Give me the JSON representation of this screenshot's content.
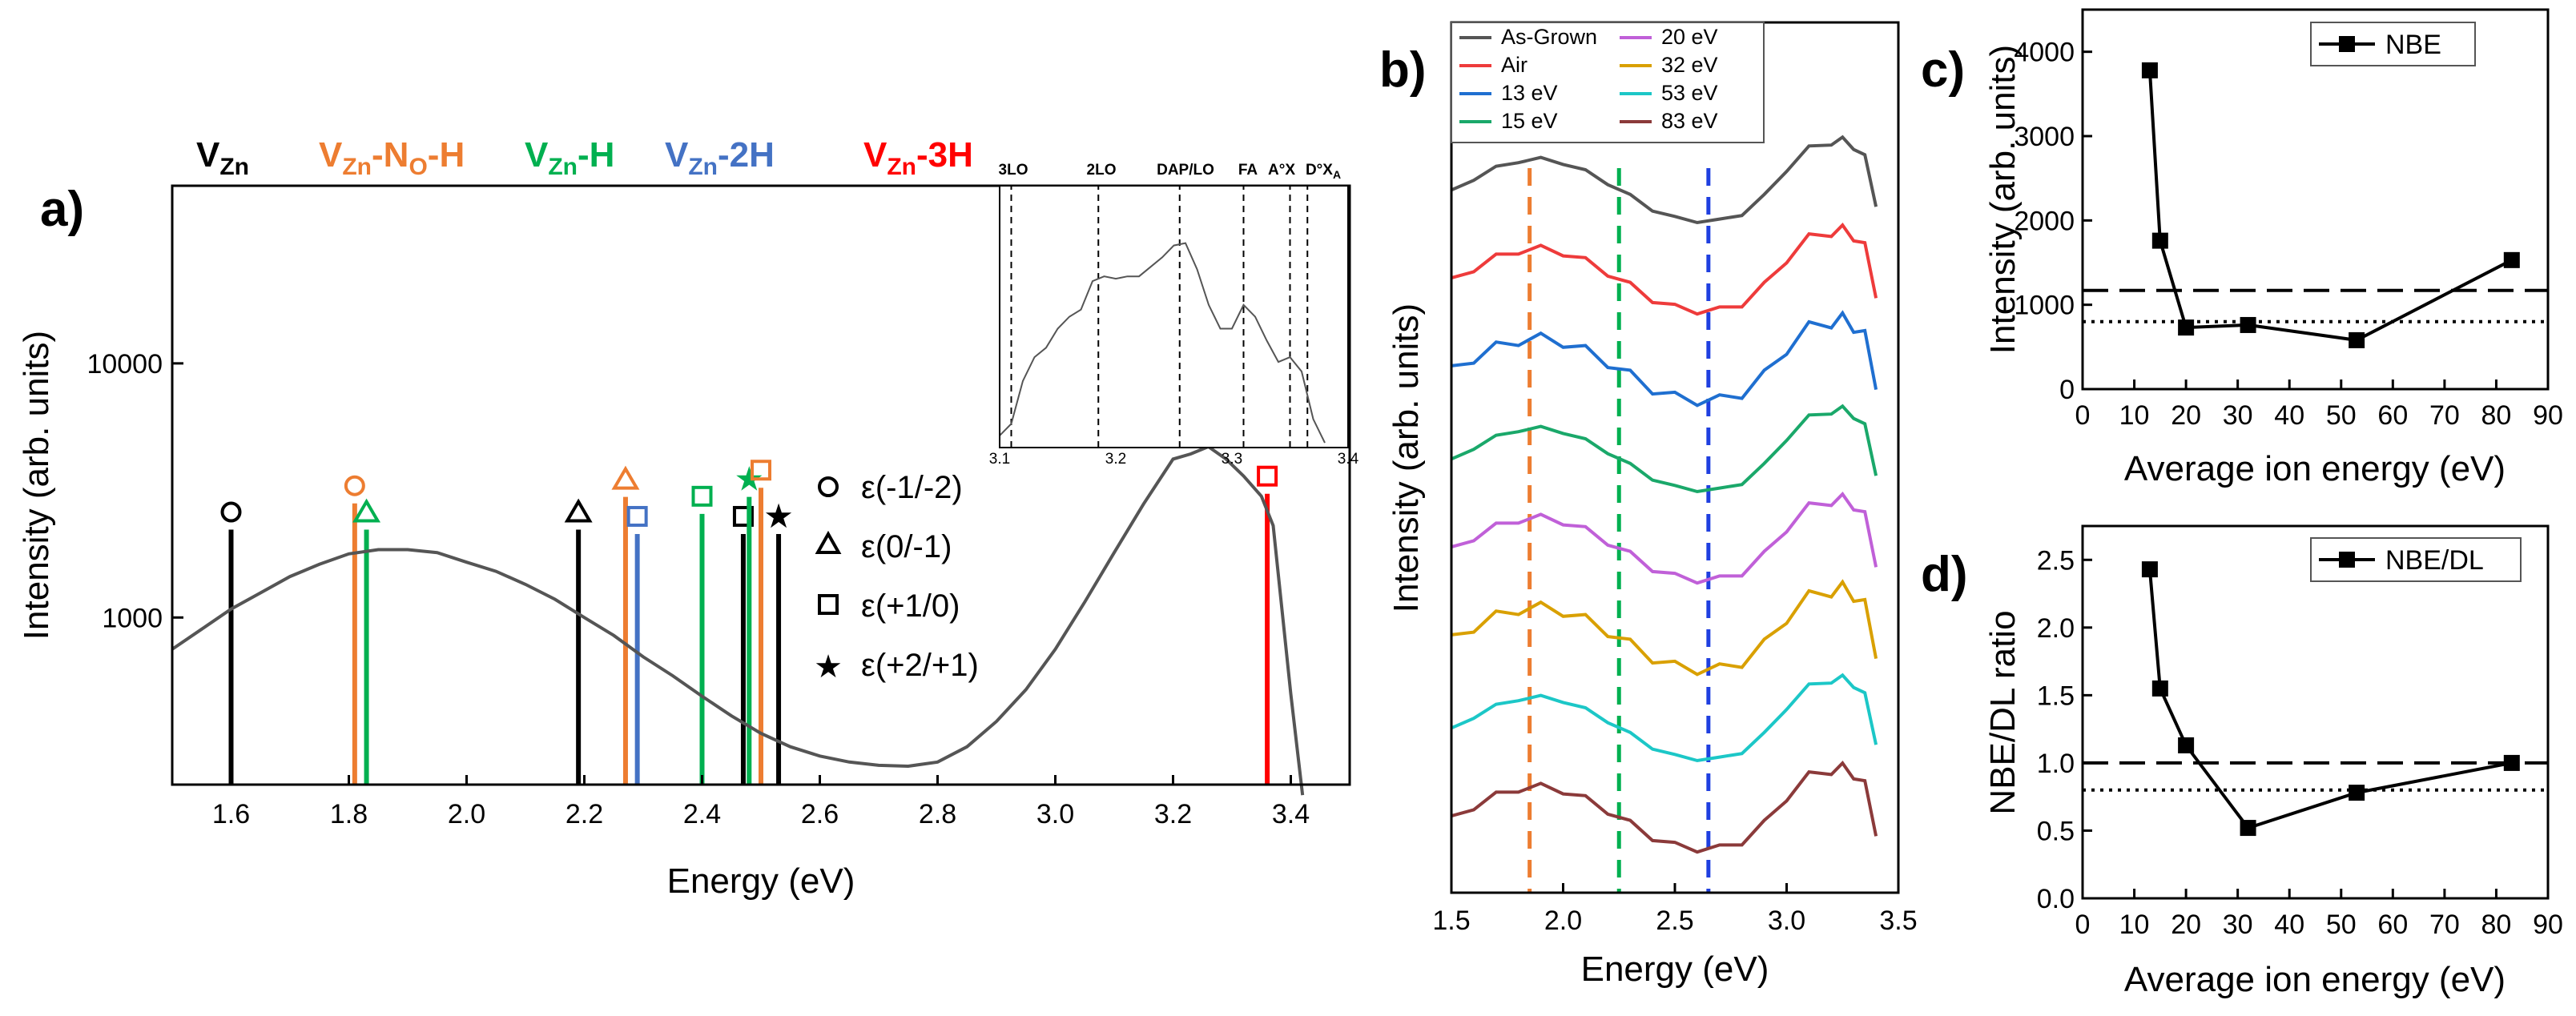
{
  "chart_data": [
    {
      "id": "a",
      "panel_label": "a)",
      "type": "line",
      "xlabel": "Energy (eV)",
      "ylabel": "Intensity (arb. units)",
      "xlim": [
        1.5,
        3.5
      ],
      "ylim": [
        220,
        50000
      ],
      "yscale": "log",
      "x_ticks": [
        "1.6",
        "1.8",
        "2.0",
        "2.2",
        "2.4",
        "2.6",
        "2.8",
        "3.0",
        "3.2",
        "3.4"
      ],
      "y_ticks": [
        "1000",
        "10000"
      ],
      "y_tick_values": [
        1000,
        10000
      ],
      "spectrum": {
        "color": "#555555",
        "x": [
          1.5,
          1.55,
          1.6,
          1.65,
          1.7,
          1.75,
          1.8,
          1.85,
          1.9,
          1.95,
          2.0,
          2.05,
          2.1,
          2.15,
          2.2,
          2.25,
          2.3,
          2.35,
          2.4,
          2.45,
          2.5,
          2.55,
          2.6,
          2.65,
          2.7,
          2.75,
          2.8,
          2.85,
          2.9,
          2.95,
          3.0,
          3.05,
          3.1,
          3.15,
          3.2,
          3.23,
          3.26,
          3.29,
          3.32,
          3.35,
          3.37,
          3.4,
          3.42
        ],
        "y": [
          750,
          900,
          1080,
          1250,
          1450,
          1620,
          1780,
          1850,
          1850,
          1800,
          1650,
          1520,
          1350,
          1180,
          1000,
          850,
          700,
          590,
          490,
          410,
          350,
          310,
          285,
          270,
          262,
          260,
          270,
          310,
          390,
          520,
          750,
          1150,
          1800,
          2800,
          4200,
          4400,
          4700,
          4200,
          3600,
          3000,
          2300,
          500,
          200
        ]
      },
      "energy_lines": [
        {
          "x": 1.6,
          "ymax": 2600,
          "color": "#000000",
          "marker": "circle"
        },
        {
          "x": 1.81,
          "ymax": 3300,
          "color": "#ED7D31",
          "marker": "circle"
        },
        {
          "x": 1.83,
          "ymax": 2600,
          "color": "#00B050",
          "marker": "triangle"
        },
        {
          "x": 2.19,
          "ymax": 2600,
          "color": "#000000",
          "marker": "triangle"
        },
        {
          "x": 2.27,
          "ymax": 3500,
          "color": "#ED7D31",
          "marker": "triangle"
        },
        {
          "x": 2.29,
          "ymax": 2500,
          "color": "#4472C4",
          "marker": "square"
        },
        {
          "x": 2.4,
          "ymax": 3000,
          "color": "#00B050",
          "marker": "square"
        },
        {
          "x": 2.47,
          "ymax": 2500,
          "color": "#000000",
          "marker": "square"
        },
        {
          "x": 2.48,
          "ymax": 3500,
          "color": "#00B050",
          "marker": "star"
        },
        {
          "x": 2.5,
          "ymax": 3800,
          "color": "#ED7D31",
          "marker": "square"
        },
        {
          "x": 2.53,
          "ymax": 2500,
          "color": "#000000",
          "marker": "star"
        },
        {
          "x": 3.36,
          "ymax": 3600,
          "color": "#FF0000",
          "marker": "square"
        }
      ],
      "defect_labels": [
        {
          "main": "V",
          "sub": "Zn",
          "suffix": "",
          "color": "#000000"
        },
        {
          "main": "V",
          "sub": "Zn",
          "suffix": "-N",
          "suffix_sub": "O",
          "tail": "-H",
          "color": "#ED7D31"
        },
        {
          "main": "V",
          "sub": "Zn",
          "suffix": "-H",
          "color": "#00B050"
        },
        {
          "main": "V",
          "sub": "Zn",
          "suffix": "-2H",
          "color": "#4472C4"
        },
        {
          "main": "V",
          "sub": "Zn",
          "suffix": "-3H",
          "color": "#FF0000"
        }
      ],
      "legend": [
        {
          "marker": "circle",
          "label": "ε(-1/-2)"
        },
        {
          "marker": "triangle",
          "label": "ε(0/-1)"
        },
        {
          "marker": "square",
          "label": "ε(+1/0)"
        },
        {
          "marker": "star",
          "label": "ε(+2/+1)"
        }
      ],
      "inset": {
        "xlim": [
          3.1,
          3.4
        ],
        "x_ticks": [
          "3.1",
          "3.2",
          "3.3",
          "3.4"
        ],
        "lines": [
          {
            "label": "3LO",
            "x": 3.11
          },
          {
            "label": "2LO",
            "x": 3.185
          },
          {
            "label": "DAP/LO",
            "x": 3.255
          },
          {
            "label": "FA",
            "x": 3.31
          },
          {
            "label": "A°X",
            "x": 3.35
          },
          {
            "label": "D°X_A",
            "x": 3.365
          }
        ],
        "line_labels": [
          "3LO",
          "2LO",
          "DAP/LO",
          "FA",
          "A°X",
          "D°X"
        ],
        "line_label_sub": "A",
        "spectrum": {
          "x": [
            3.1,
            3.11,
            3.12,
            3.13,
            3.14,
            3.15,
            3.16,
            3.17,
            3.18,
            3.19,
            3.2,
            3.21,
            3.22,
            3.23,
            3.24,
            3.25,
            3.26,
            3.27,
            3.28,
            3.29,
            3.3,
            3.31,
            3.32,
            3.33,
            3.34,
            3.35,
            3.36,
            3.37,
            3.38
          ],
          "y": [
            0.05,
            0.1,
            0.28,
            0.38,
            0.42,
            0.5,
            0.55,
            0.58,
            0.7,
            0.72,
            0.71,
            0.72,
            0.72,
            0.76,
            0.8,
            0.85,
            0.86,
            0.75,
            0.6,
            0.5,
            0.5,
            0.6,
            0.55,
            0.45,
            0.36,
            0.38,
            0.32,
            0.12,
            0.02
          ]
        }
      }
    },
    {
      "id": "b",
      "panel_label": "b)",
      "type": "line",
      "xlabel": "Energy (eV)",
      "ylabel": "Intensity (arb. units)",
      "xlim": [
        1.5,
        3.5
      ],
      "x_ticks": [
        "1.5",
        "2.0",
        "2.5",
        "3.0",
        "3.5"
      ],
      "vlines": [
        {
          "x": 1.85,
          "color": "#ED7D31"
        },
        {
          "x": 2.25,
          "color": "#00B050"
        },
        {
          "x": 2.65,
          "color": "#1F3FE0"
        }
      ],
      "legend_col1": [
        "As-Grown",
        "Air",
        "13 eV",
        "15 eV"
      ],
      "legend_col2": [
        "20 eV",
        "32 eV",
        "53 eV",
        "83 eV"
      ],
      "series": [
        {
          "name": "As-Grown",
          "color": "#555555",
          "offset": 0
        },
        {
          "name": "Air",
          "color": "#EE3B3B",
          "offset": 1
        },
        {
          "name": "13 eV",
          "color": "#1F6FD0",
          "offset": 2
        },
        {
          "name": "15 eV",
          "color": "#1AA86A",
          "offset": 3
        },
        {
          "name": "20 eV",
          "color": "#C060D8",
          "offset": 4
        },
        {
          "name": "32 eV",
          "color": "#D9A000",
          "offset": 5
        },
        {
          "name": "53 eV",
          "color": "#1CC7C7",
          "offset": 6
        },
        {
          "name": "83 eV",
          "color": "#8B3A3A",
          "offset": 7
        }
      ],
      "profile": {
        "x": [
          1.5,
          1.6,
          1.7,
          1.8,
          1.9,
          2.0,
          2.1,
          2.2,
          2.3,
          2.4,
          2.5,
          2.6,
          2.7,
          2.8,
          2.9,
          3.0,
          3.1,
          3.2,
          3.25,
          3.3,
          3.35,
          3.4
        ],
        "y": [
          0.55,
          0.7,
          0.82,
          0.9,
          0.92,
          0.88,
          0.78,
          0.65,
          0.5,
          0.35,
          0.25,
          0.22,
          0.22,
          0.3,
          0.5,
          0.8,
          1.05,
          1.1,
          1.15,
          1.05,
          0.95,
          0.4
        ]
      }
    },
    {
      "id": "c",
      "panel_label": "c)",
      "type": "line",
      "xlabel": "Average ion energy (eV)",
      "ylabel": "Intensity (arb. units)",
      "xlim": [
        0,
        90
      ],
      "ylim": [
        0,
        4500
      ],
      "x_ticks": [
        "0",
        "10",
        "20",
        "30",
        "40",
        "50",
        "60",
        "70",
        "80",
        "90"
      ],
      "x_tick_values": [
        0,
        10,
        20,
        30,
        40,
        50,
        60,
        70,
        80,
        90
      ],
      "y_ticks": [
        "0",
        "1000",
        "2000",
        "3000",
        "4000"
      ],
      "y_tick_values": [
        0,
        1000,
        2000,
        3000,
        4000
      ],
      "series": [
        {
          "name": "NBE",
          "x": [
            13,
            15,
            20,
            32,
            53,
            83
          ],
          "y": [
            3780,
            1760,
            730,
            760,
            580,
            1530
          ]
        }
      ],
      "hlines": [
        {
          "y": 1170,
          "style": "dashed"
        },
        {
          "y": 800,
          "style": "dotted"
        }
      ],
      "legend": [
        "NBE"
      ]
    },
    {
      "id": "d",
      "panel_label": "d)",
      "type": "line",
      "xlabel": "Average ion energy (eV)",
      "ylabel": "NBE/DL ratio",
      "xlim": [
        0,
        90
      ],
      "ylim": [
        0,
        2.75
      ],
      "x_ticks": [
        "0",
        "10",
        "20",
        "30",
        "40",
        "50",
        "60",
        "70",
        "80",
        "90"
      ],
      "x_tick_values": [
        0,
        10,
        20,
        30,
        40,
        50,
        60,
        70,
        80,
        90
      ],
      "y_ticks": [
        "0.0",
        "0.5",
        "1.0",
        "1.5",
        "2.0",
        "2.5"
      ],
      "y_tick_values": [
        0,
        0.5,
        1.0,
        1.5,
        2.0,
        2.5
      ],
      "series": [
        {
          "name": "NBE/DL",
          "x": [
            13,
            15,
            20,
            32,
            53,
            83
          ],
          "y": [
            2.43,
            1.55,
            1.13,
            0.52,
            0.78,
            1.0
          ]
        }
      ],
      "hlines": [
        {
          "y": 1.0,
          "style": "dashed"
        },
        {
          "y": 0.8,
          "style": "dotted"
        }
      ],
      "legend": [
        "NBE/DL"
      ]
    }
  ]
}
